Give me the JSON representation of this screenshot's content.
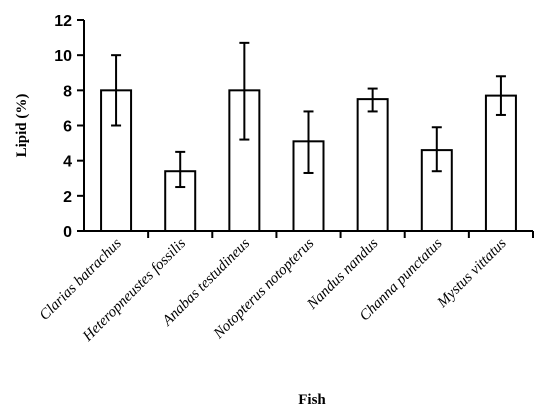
{
  "chart_data": {
    "type": "bar",
    "xlabel": "Fish",
    "ylabel": "Lipid (%)",
    "ylim": [
      0,
      12
    ],
    "yticks": [
      0,
      2,
      4,
      6,
      8,
      10,
      12
    ],
    "categories": [
      "Clarias batrachus",
      "Heteropneustes  fossilis",
      "Anabas testudineus",
      "Notopterus notopterus",
      "Nandus nandus",
      "Channa punctatus",
      "Mystus vittatus"
    ],
    "values": [
      8.0,
      3.4,
      8.0,
      5.1,
      7.5,
      4.6,
      7.7
    ],
    "error_low": [
      6.0,
      2.5,
      5.2,
      3.3,
      6.8,
      3.4,
      6.6
    ],
    "error_high": [
      10.0,
      4.5,
      10.7,
      6.8,
      8.1,
      5.9,
      8.8
    ],
    "grid": false,
    "legend": "none"
  }
}
